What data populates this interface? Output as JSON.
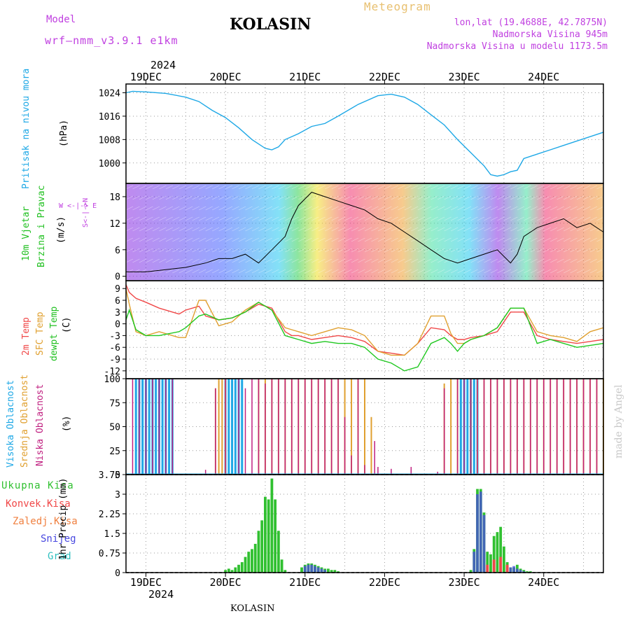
{
  "header": {
    "model_label": "Model",
    "model_name": "wrf—nmm_v3.9.1  e1km",
    "station": "KOLASIN",
    "meteogram": "Meteogram",
    "coords": "lon,lat (19.4688E, 42.7875N)",
    "elevation": "Nadmorska Visina 945m",
    "model_elevation": "Nadmorska Visina u modelu 1173.5m",
    "year_top": "2024",
    "year_bottom": "2024",
    "footer": "KOLASIN",
    "credit": "made by Angel"
  },
  "colors": {
    "pressure": "#1ea8e6",
    "t2m": "#f04848",
    "sfc": "#e0a030",
    "dewpt": "#20c820",
    "high_cloud": "#1ea8e6",
    "mid_cloud": "#e0a030",
    "low_cloud": "#c02080",
    "total_precip": "#30c030",
    "conv_precip": "#f04848",
    "snow": "#4848e0",
    "graupel": "#30c0c0",
    "ylabel_purple": "#c040e0"
  },
  "axis": {
    "days": [
      "19DEC",
      "20DEC",
      "21DEC",
      "22DEC",
      "23DEC",
      "24DEC"
    ],
    "hour_range": [
      0,
      144
    ]
  },
  "panels": {
    "pressure": {
      "label": "Pritisak na nivou mora",
      "unit": "(hPa)",
      "ticks": [
        "1024",
        "1016",
        "1008",
        "1000"
      ]
    },
    "wind": {
      "label1": "10m Vjetar",
      "label2": "Brzina i Pravac",
      "unit": "(m/s)",
      "ticks": [
        "18",
        "12",
        "6",
        "0"
      ],
      "compass": "W  <-|->  E",
      "compass_v": "S<-|->N"
    },
    "temp": {
      "label1": "2m Temp",
      "label2": "SFC Temp",
      "label3": "dewpt Temp",
      "unit": "(C)",
      "ticks": [
        "9",
        "6",
        "3",
        "0",
        "-3",
        "-6",
        "-9",
        "-12"
      ]
    },
    "cloud": {
      "label1": "Visoka Oblacnost",
      "label2": "Srednja Oblacnost",
      "label3": "Niska Oblacnost",
      "unit": "(%)",
      "ticks": [
        "100",
        "75",
        "50",
        "25",
        "0"
      ]
    },
    "precip": {
      "label": "1hr Precip (mm)",
      "legend": [
        "Ukupna Kisa",
        "Konvek.Kisa",
        "Zaledj.Kisa",
        "Snijeg",
        "Grad"
      ],
      "ticks": [
        "3.75",
        "3",
        "2.25",
        "1.5",
        "0.75",
        "0"
      ]
    }
  },
  "chart_data": [
    {
      "type": "line",
      "title": "Pritisak na nivou mora",
      "ylabel": "(hPa)",
      "ylim": [
        993,
        1027
      ],
      "x_hours": [
        0,
        2,
        6,
        12,
        18,
        22,
        26,
        30,
        34,
        38,
        42,
        44,
        46,
        48,
        52,
        56,
        60,
        64,
        70,
        76,
        80,
        84,
        88,
        92,
        96,
        100,
        104,
        108,
        110,
        112,
        114,
        116,
        118,
        120,
        124,
        128,
        132,
        136,
        140,
        144
      ],
      "values": [
        1024,
        1024.5,
        1024.3,
        1023.8,
        1022.5,
        1021,
        1018,
        1015.5,
        1012,
        1008,
        1005,
        1004.5,
        1005.5,
        1008,
        1010,
        1012.5,
        1013.5,
        1016,
        1020,
        1023,
        1023.5,
        1022.5,
        1020,
        1016.5,
        1013,
        1008,
        1003.5,
        999,
        996,
        995.5,
        996,
        997,
        997.5,
        1001.5,
        1003,
        1004.5,
        1006,
        1007.5,
        1009,
        1010.5
      ]
    },
    {
      "type": "line",
      "title": "10m Vjetar Brzina i Pravac",
      "ylabel": "(m/s)",
      "ylim": [
        -1,
        21
      ],
      "x_hours": [
        0,
        6,
        12,
        18,
        24,
        28,
        32,
        36,
        40,
        44,
        48,
        50,
        52,
        56,
        60,
        64,
        68,
        72,
        76,
        80,
        84,
        88,
        92,
        96,
        100,
        104,
        108,
        112,
        116,
        118,
        120,
        124,
        128,
        132,
        136,
        140,
        144
      ],
      "series": [
        {
          "values": [
            1,
            1,
            1.5,
            2,
            3,
            4,
            4,
            5,
            3,
            6,
            9,
            13,
            16,
            19,
            18,
            17,
            16,
            15,
            13,
            12,
            10,
            8,
            6,
            4,
            3,
            4,
            5,
            6,
            3,
            5,
            9,
            11,
            12,
            13,
            11,
            12,
            10
          ]
        }
      ]
    },
    {
      "type": "line",
      "title": "2m Temp / SFC Temp / dewpt Temp",
      "ylabel": "(C)",
      "ylim": [
        -14,
        11
      ],
      "x_hours": [
        0,
        1,
        3,
        6,
        10,
        16,
        18,
        22,
        24,
        28,
        32,
        36,
        40,
        44,
        48,
        50,
        52,
        56,
        60,
        64,
        68,
        72,
        76,
        80,
        84,
        88,
        92,
        96,
        98,
        100,
        102,
        104,
        108,
        112,
        116,
        120,
        124,
        128,
        132,
        136,
        140,
        144
      ],
      "series": [
        {
          "name": "2m Temp",
          "values": [
            10,
            8,
            6.5,
            5.5,
            4,
            2.5,
            3.5,
            4.5,
            2,
            1,
            1.5,
            3,
            5,
            4,
            -2,
            -3,
            -3,
            -4,
            -3.5,
            -3,
            -3.5,
            -4.5,
            -7,
            -7.5,
            -8,
            -5,
            -1,
            -1.5,
            -3,
            -4,
            -4,
            -3.5,
            -3,
            -2,
            3,
            3,
            -3,
            -4,
            -4.5,
            -5,
            -4.5,
            -4
          ]
        },
        {
          "name": "SFC Temp",
          "values": [
            9,
            5,
            -2,
            -3,
            -2,
            -3.5,
            -3.5,
            6,
            6,
            -0.5,
            0.5,
            3.5,
            5.5,
            3.5,
            -1,
            -1.5,
            -2,
            -3,
            -2,
            -1,
            -1.5,
            -3,
            -7,
            -8,
            -8,
            -5,
            2,
            2,
            -2.5,
            -5,
            -5,
            -4,
            -3,
            -1,
            4,
            4,
            -2,
            -3,
            -3.5,
            -4.5,
            -2,
            -1
          ]
        },
        {
          "name": "dewpt Temp",
          "values": [
            1,
            3.5,
            -1.5,
            -3,
            -3,
            -2,
            -1,
            2,
            2.5,
            1,
            1.5,
            3,
            5.5,
            3.5,
            -3,
            -3.5,
            -4,
            -5,
            -4.5,
            -5,
            -5,
            -6,
            -9,
            -10,
            -12,
            -11,
            -5,
            -3.5,
            -5,
            -7,
            -5,
            -4,
            -3,
            -1,
            4,
            4,
            -5,
            -4,
            -5,
            -6,
            -5.5,
            -5
          ]
        }
      ]
    },
    {
      "type": "bar",
      "title": "Visoka / Srednja / Niska Oblacnost",
      "ylabel": "(%)",
      "ylim": [
        0,
        100
      ],
      "series": [
        {
          "name": "Visoka Oblacnost",
          "x_hours": [
            3,
            4,
            5,
            6,
            7,
            8,
            9,
            10,
            11,
            12,
            13,
            14,
            30,
            31,
            32,
            33,
            34,
            35,
            101,
            102,
            103,
            104,
            105,
            106
          ],
          "values": [
            100,
            100,
            100,
            100,
            100,
            100,
            100,
            100,
            100,
            100,
            100,
            100,
            100,
            100,
            100,
            100,
            100,
            100,
            100,
            100,
            100,
            100,
            100,
            100
          ]
        },
        {
          "name": "Srednja Oblacnost",
          "x_hours": [
            27,
            28,
            29,
            30,
            40,
            42,
            44,
            46,
            48,
            50,
            52,
            54,
            56,
            58,
            60,
            62,
            64,
            66,
            68,
            70,
            72,
            74,
            96,
            98,
            100,
            104,
            106,
            108,
            110,
            112,
            114,
            116,
            118,
            120,
            122,
            124,
            126,
            128,
            130,
            132,
            134,
            136,
            138,
            140,
            142,
            144
          ],
          "values": [
            90,
            100,
            100,
            100,
            100,
            100,
            100,
            100,
            100,
            100,
            100,
            100,
            100,
            100,
            100,
            100,
            100,
            100,
            100,
            100,
            100,
            60,
            95,
            100,
            100,
            100,
            100,
            100,
            100,
            100,
            100,
            100,
            100,
            100,
            100,
            100,
            100,
            100,
            100,
            100,
            100,
            100,
            100,
            100,
            100,
            100
          ]
        },
        {
          "name": "Niska Oblacnost",
          "x_hours": [
            2,
            4,
            6,
            8,
            10,
            12,
            14,
            24,
            27,
            30,
            34,
            36,
            38,
            40,
            42,
            44,
            46,
            48,
            50,
            52,
            54,
            56,
            58,
            60,
            62,
            64,
            66,
            68,
            70,
            72,
            75,
            76,
            80,
            86,
            94,
            96,
            100,
            102,
            104,
            106,
            108,
            110,
            112,
            114,
            116,
            118,
            120,
            122,
            124,
            126,
            128,
            130,
            132,
            134,
            136,
            138,
            140,
            142
          ],
          "values": [
            100,
            100,
            100,
            100,
            100,
            100,
            100,
            5,
            90,
            100,
            100,
            90,
            100,
            100,
            95,
            100,
            100,
            100,
            100,
            100,
            100,
            100,
            100,
            100,
            100,
            100,
            60,
            20,
            100,
            10,
            35,
            8,
            6,
            8,
            3,
            90,
            100,
            100,
            100,
            100,
            100,
            100,
            100,
            100,
            100,
            100,
            100,
            100,
            100,
            100,
            100,
            100,
            100,
            100,
            100,
            100,
            100,
            100
          ]
        }
      ]
    },
    {
      "type": "bar",
      "title": "1hr Precip (mm)",
      "ylabel": "1hr Precip (mm)",
      "ylim": [
        0,
        3.75
      ],
      "series": [
        {
          "name": "Ukupna Kisa",
          "x_hours": [
            30,
            31,
            32,
            33,
            34,
            35,
            36,
            37,
            38,
            39,
            40,
            41,
            42,
            43,
            44,
            45,
            46,
            47,
            48,
            53,
            54,
            55,
            56,
            57,
            58,
            59,
            60,
            61,
            62,
            63,
            64,
            104,
            105,
            106,
            107,
            108,
            109,
            110,
            111,
            112,
            113,
            114,
            115,
            116,
            117,
            118,
            119,
            120,
            121,
            122
          ],
          "values": [
            0.1,
            0.15,
            0.1,
            0.2,
            0.3,
            0.4,
            0.6,
            0.8,
            0.9,
            1.1,
            1.6,
            2.0,
            2.9,
            2.8,
            3.6,
            2.8,
            1.6,
            0.5,
            0.1,
            0.2,
            0.3,
            0.35,
            0.35,
            0.3,
            0.25,
            0.2,
            0.15,
            0.15,
            0.1,
            0.1,
            0.05,
            0.1,
            0.9,
            3.2,
            3.2,
            2.3,
            0.8,
            0.7,
            1.4,
            1.55,
            1.75,
            1.0,
            0.4,
            0.2,
            0.2,
            0.3,
            0.15,
            0.1,
            0.05,
            0.05
          ]
        },
        {
          "name": "Konvek.Kisa",
          "x_hours": [
            109,
            111,
            113,
            115
          ],
          "values": [
            0.3,
            0.5,
            0.6,
            0.3
          ]
        },
        {
          "name": "Snijeg",
          "x_hours": [
            54,
            55,
            56,
            57,
            58,
            59,
            60,
            105,
            106,
            107,
            108,
            116,
            117,
            118,
            119,
            120
          ],
          "values": [
            0.25,
            0.3,
            0.3,
            0.25,
            0.2,
            0.15,
            0.1,
            0.8,
            3.0,
            3.1,
            2.2,
            0.2,
            0.25,
            0.15,
            0.1,
            0.05
          ]
        }
      ]
    }
  ]
}
